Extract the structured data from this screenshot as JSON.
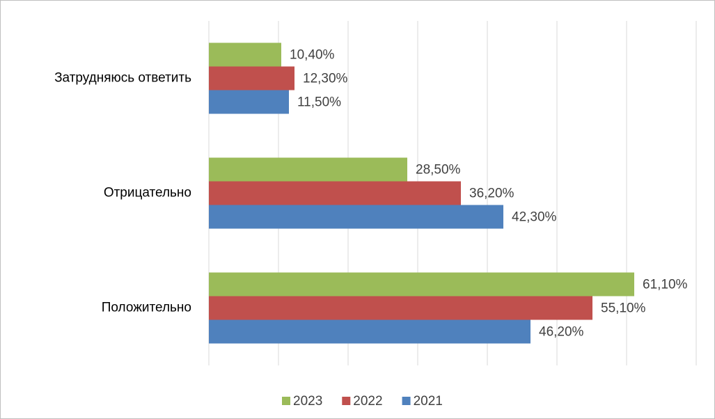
{
  "chart_data": {
    "type": "bar",
    "orientation": "horizontal",
    "categories": [
      "Затрудняюсь ответить",
      "Отрицательно",
      "Положительно"
    ],
    "series": [
      {
        "name": "2023",
        "color": "#9bbb59",
        "values": [
          10.4,
          28.5,
          61.1
        ],
        "value_labels": [
          "10,40%",
          "28,50%",
          "61,10%"
        ]
      },
      {
        "name": "2022",
        "color": "#c0504d",
        "values": [
          12.3,
          36.2,
          55.1
        ],
        "value_labels": [
          "12,30%",
          "36,20%",
          "55,10%"
        ]
      },
      {
        "name": "2021",
        "color": "#4f81bd",
        "values": [
          11.5,
          42.3,
          46.2
        ],
        "value_labels": [
          "11,50%",
          "42,30%",
          "46,20%"
        ]
      }
    ],
    "xlim": [
      0,
      70
    ],
    "xticks": [
      0,
      10,
      20,
      30,
      40,
      50,
      60,
      70
    ],
    "grid": true,
    "legend": "bottom"
  }
}
